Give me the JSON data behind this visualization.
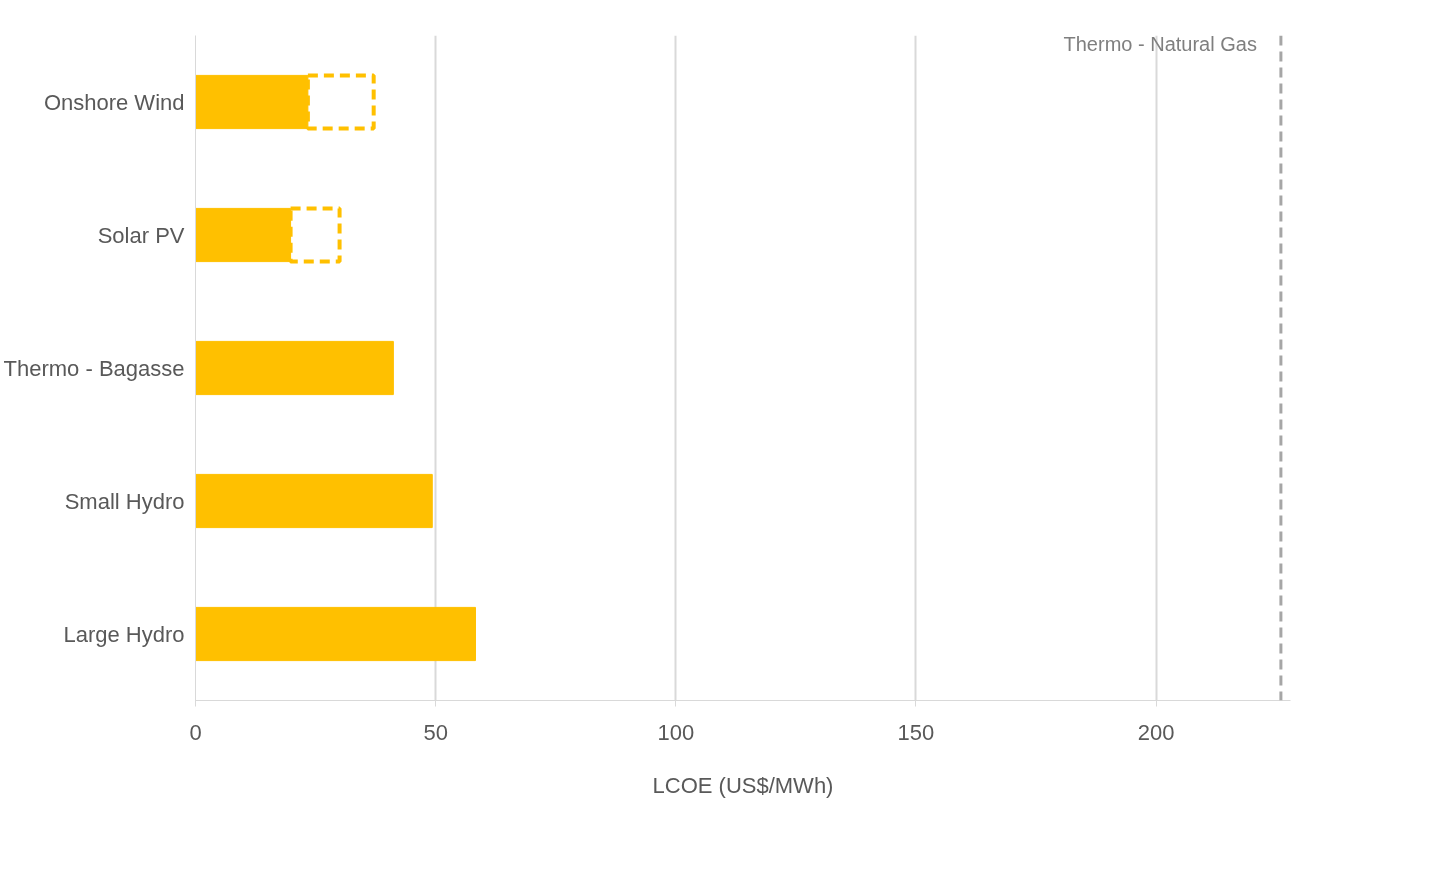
{
  "chart_data": {
    "type": "bar",
    "orientation": "horizontal",
    "stacked": true,
    "categories": [
      "Onshore Wind",
      "Solar PV",
      "Thermo - Bagasse",
      "Small Hydro",
      "Large Hydro"
    ],
    "series": [
      {
        "color": "#ffc000",
        "values": [
          23.4,
          19.8,
          41.2,
          49.3,
          58.3
        ]
      },
      {
        "color": "#ffc000",
        "line_style": "dashed",
        "values": [
          13.7,
          10.2,
          null,
          null,
          null
        ]
      }
    ],
    "xlabel": "LCOE (US$/MWh)",
    "xlim": [
      0,
      228
    ],
    "xticks": [
      0,
      50,
      100,
      150,
      200
    ],
    "grid": "x",
    "ref_lines": [
      {
        "axis": "x",
        "value": 226,
        "label": "Thermo - Natural Gas",
        "color": "#a6a6a6",
        "line_style": "dashed"
      }
    ]
  }
}
